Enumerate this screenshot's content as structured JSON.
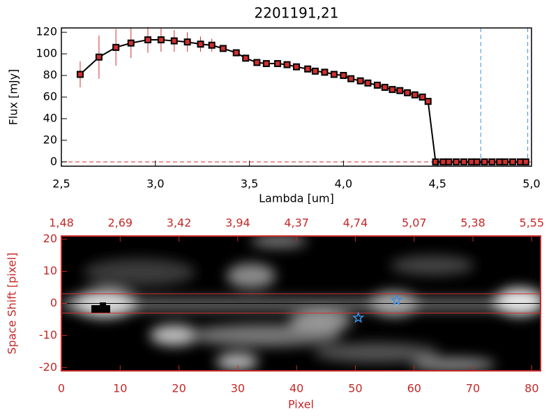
{
  "chart_data": [
    {
      "type": "line",
      "title": "2201191,21",
      "xlabel": "Lambda [um]",
      "ylabel": "Flux [mJy]",
      "xlim": [
        2.5,
        5.0
      ],
      "ylim": [
        -4,
        124
      ],
      "xticks": [
        {
          "value": 2.5,
          "label": "2,5"
        },
        {
          "value": 3.0,
          "label": "3,0"
        },
        {
          "value": 3.5,
          "label": "3,5"
        },
        {
          "value": 4.0,
          "label": "4,0"
        },
        {
          "value": 4.5,
          "label": "4,5"
        },
        {
          "value": 5.0,
          "label": "5,0"
        }
      ],
      "yticks": [
        0,
        20,
        40,
        60,
        80,
        100,
        120
      ],
      "vlines": [
        4.73,
        4.98
      ],
      "vline_color": "#3a8ee6",
      "hline": 0,
      "hline_color": "#d32f2f",
      "series": [
        {
          "color": "#000000",
          "marker_color": "#d32f2f",
          "errbar_color": "#d32f2f",
          "x": [
            2.6,
            2.7,
            2.79,
            2.87,
            2.96,
            3.03,
            3.1,
            3.17,
            3.24,
            3.3,
            3.36,
            3.43,
            3.48,
            3.54,
            3.59,
            3.65,
            3.7,
            3.75,
            3.81,
            3.85,
            3.9,
            3.95,
            4.0,
            4.04,
            4.09,
            4.13,
            4.18,
            4.22,
            4.26,
            4.3,
            4.34,
            4.38,
            4.42,
            4.45,
            4.49,
            4.53,
            4.56,
            4.6,
            4.64,
            4.68,
            4.71,
            4.75,
            4.79,
            4.83,
            4.86,
            4.9,
            4.94,
            4.97
          ],
          "values": [
            81,
            97,
            106,
            110,
            113,
            113,
            112,
            111,
            109,
            108,
            105,
            101,
            96,
            92,
            91,
            91,
            90,
            88,
            86,
            84,
            83,
            81,
            80,
            77,
            75,
            73,
            71,
            69,
            67,
            66,
            64,
            62,
            60,
            56,
            0,
            0,
            0,
            0,
            0,
            0,
            0,
            0,
            0,
            0,
            0,
            0,
            0,
            0
          ],
          "errors": [
            12,
            20,
            17,
            14,
            12,
            11,
            10,
            9,
            7,
            6,
            3,
            2,
            1,
            1,
            1,
            1,
            1,
            1,
            1,
            1,
            1,
            1,
            1,
            1,
            1,
            1,
            1,
            1,
            1,
            1,
            1,
            1,
            1,
            1,
            0,
            0,
            0,
            0,
            0,
            0,
            0,
            0,
            0,
            0,
            0,
            0,
            0,
            0
          ]
        }
      ]
    },
    {
      "type": "image",
      "xlabel": "Pixel",
      "ylabel": "Space Shift [pixel]",
      "axis_color": "#c62828",
      "xlim": [
        0,
        81.5
      ],
      "ylim": [
        -21,
        21
      ],
      "xticks": [
        0,
        10,
        20,
        30,
        40,
        50,
        60,
        70,
        80
      ],
      "yticks": [
        -20,
        -10,
        0,
        10,
        20
      ],
      "x2ticks": [
        {
          "value": 0,
          "label": "1,48"
        },
        {
          "value": 10,
          "label": "2,69"
        },
        {
          "value": 20,
          "label": "3,42"
        },
        {
          "value": 30,
          "label": "3,94"
        },
        {
          "value": 40,
          "label": "4,37"
        },
        {
          "value": 50,
          "label": "4,74"
        },
        {
          "value": 60,
          "label": "5,07"
        },
        {
          "value": 70,
          "label": "5,38"
        },
        {
          "value": 80,
          "label": "5,55"
        }
      ],
      "hlines": [
        3,
        -3
      ],
      "hline_color": "#d32f2f",
      "center_line": 0,
      "stars": {
        "color": "#3a8ee6",
        "x": [
          57,
          50.5
        ],
        "y": [
          1,
          -4.5
        ]
      }
    }
  ]
}
